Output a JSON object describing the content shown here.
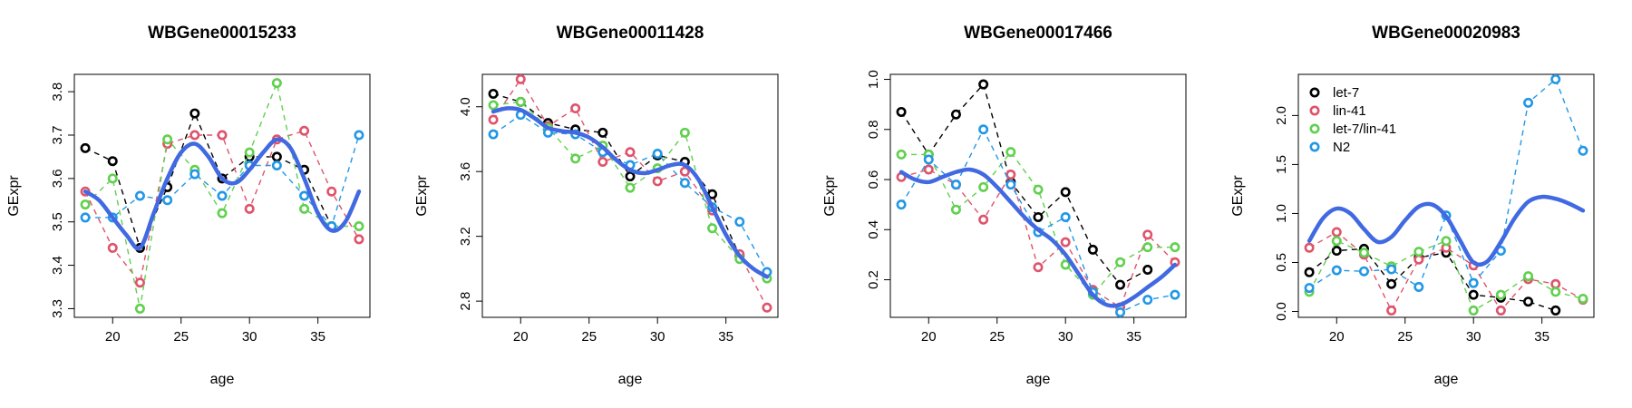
{
  "colors": {
    "let-7": "#000000",
    "lin-41": "#DF536B",
    "let-7/lin-41": "#61D04F",
    "N2": "#2297E6",
    "smooth": "#4169E1"
  },
  "chart_data": [
    {
      "type": "line",
      "title": "WBGene00015233",
      "xlabel": "age",
      "ylabel": "GExpr",
      "xlim": [
        17.2,
        38.8
      ],
      "ylim": [
        3.28,
        3.84
      ],
      "xticks": [
        20,
        25,
        30,
        35
      ],
      "yticks": [
        3.3,
        3.4,
        3.5,
        3.6,
        3.7,
        3.8
      ],
      "ytick_labels": [
        "3.3",
        "3.4",
        "3.5",
        "3.6",
        "3.7",
        "3.8"
      ],
      "grid": false,
      "legend": null,
      "series": [
        {
          "name": "let-7",
          "x": [
            18,
            20,
            22,
            24,
            26,
            28,
            30,
            32,
            34,
            36
          ],
          "values": [
            3.67,
            3.64,
            3.44,
            3.58,
            3.75,
            3.6,
            3.65,
            3.65,
            3.62,
            3.49
          ]
        },
        {
          "name": "lin-41",
          "x": [
            18,
            20,
            22,
            24,
            26,
            28,
            30,
            32,
            34,
            36,
            38
          ],
          "values": [
            3.57,
            3.44,
            3.36,
            3.68,
            3.7,
            3.7,
            3.53,
            3.69,
            3.71,
            3.57,
            3.46
          ]
        },
        {
          "name": "let-7/lin-41",
          "x": [
            18,
            20,
            22,
            24,
            26,
            28,
            30,
            32,
            34,
            36,
            38
          ],
          "values": [
            3.54,
            3.6,
            3.3,
            3.69,
            3.62,
            3.52,
            3.66,
            3.82,
            3.53,
            3.49,
            3.49
          ]
        },
        {
          "name": "N2",
          "x": [
            18,
            20,
            22,
            24,
            26,
            28,
            30,
            32,
            34,
            36,
            38
          ],
          "values": [
            3.51,
            3.51,
            3.56,
            3.55,
            3.61,
            3.56,
            3.63,
            3.63,
            3.56,
            3.49,
            3.7
          ]
        }
      ],
      "smooth": {
        "x": [
          18,
          19,
          20,
          21,
          22,
          23,
          24,
          25,
          26,
          27,
          28,
          29,
          30,
          31,
          32,
          33,
          34,
          35,
          36,
          37,
          38
        ],
        "values": [
          3.57,
          3.55,
          3.51,
          3.47,
          3.44,
          3.52,
          3.6,
          3.66,
          3.68,
          3.65,
          3.6,
          3.59,
          3.62,
          3.66,
          3.69,
          3.67,
          3.6,
          3.52,
          3.48,
          3.5,
          3.57
        ]
      }
    },
    {
      "type": "line",
      "title": "WBGene00011428",
      "xlabel": "age",
      "ylabel": "GExpr",
      "xlim": [
        17.2,
        38.8
      ],
      "ylim": [
        2.7,
        4.2
      ],
      "xticks": [
        20,
        25,
        30,
        35
      ],
      "yticks": [
        2.8,
        3.2,
        3.6,
        4.0
      ],
      "ytick_labels": [
        "2.8",
        "3.2",
        "3.6",
        "4.0"
      ],
      "grid": false,
      "legend": null,
      "series": [
        {
          "name": "let-7",
          "x": [
            18,
            20,
            22,
            24,
            26,
            28,
            30,
            32,
            34,
            36
          ],
          "values": [
            4.08,
            4.03,
            3.9,
            3.86,
            3.84,
            3.57,
            3.7,
            3.66,
            3.46,
            3.08
          ]
        },
        {
          "name": "lin-41",
          "x": [
            18,
            20,
            22,
            24,
            26,
            28,
            30,
            32,
            34,
            36,
            38
          ],
          "values": [
            3.92,
            4.17,
            3.88,
            3.99,
            3.66,
            3.72,
            3.54,
            3.6,
            3.36,
            3.09,
            2.76
          ]
        },
        {
          "name": "let-7/lin-41",
          "x": [
            18,
            20,
            22,
            24,
            26,
            28,
            30,
            32,
            34,
            36,
            38
          ],
          "values": [
            4.01,
            4.03,
            3.87,
            3.68,
            3.76,
            3.5,
            3.62,
            3.84,
            3.25,
            3.06,
            2.94
          ]
        },
        {
          "name": "N2",
          "x": [
            18,
            20,
            22,
            24,
            26,
            28,
            30,
            32,
            34,
            36,
            38
          ],
          "values": [
            3.83,
            3.95,
            3.84,
            3.83,
            3.72,
            3.64,
            3.71,
            3.53,
            3.38,
            3.29,
            2.98
          ]
        }
      ],
      "smooth": {
        "x": [
          18,
          19,
          20,
          21,
          22,
          23,
          24,
          25,
          26,
          27,
          28,
          29,
          30,
          31,
          32,
          33,
          34,
          35,
          36,
          37,
          38
        ],
        "values": [
          3.97,
          3.99,
          3.98,
          3.93,
          3.87,
          3.85,
          3.84,
          3.81,
          3.75,
          3.67,
          3.61,
          3.59,
          3.61,
          3.64,
          3.64,
          3.55,
          3.38,
          3.21,
          3.08,
          3.0,
          2.95
        ]
      }
    },
    {
      "type": "line",
      "title": "WBGene00017466",
      "xlabel": "age",
      "ylabel": "GExpr",
      "xlim": [
        17.2,
        38.8
      ],
      "ylim": [
        0.05,
        1.02
      ],
      "xticks": [
        20,
        25,
        30,
        35
      ],
      "yticks": [
        0.2,
        0.4,
        0.6,
        0.8,
        1.0
      ],
      "ytick_labels": [
        "0.2",
        "0.4",
        "0.6",
        "0.8",
        "1.0"
      ],
      "grid": false,
      "legend": null,
      "series": [
        {
          "name": "let-7",
          "x": [
            18,
            20,
            22,
            24,
            26,
            28,
            30,
            32,
            34,
            36
          ],
          "values": [
            0.87,
            0.7,
            0.86,
            0.98,
            0.59,
            0.45,
            0.55,
            0.32,
            0.18,
            0.24
          ]
        },
        {
          "name": "lin-41",
          "x": [
            18,
            20,
            22,
            24,
            26,
            28,
            30,
            32,
            34,
            36,
            38
          ],
          "values": [
            0.61,
            0.64,
            0.58,
            0.44,
            0.62,
            0.25,
            0.35,
            0.16,
            0.09,
            0.38,
            0.27
          ]
        },
        {
          "name": "let-7/lin-41",
          "x": [
            18,
            20,
            22,
            24,
            26,
            28,
            30,
            32,
            34,
            36,
            38
          ],
          "values": [
            0.7,
            0.7,
            0.48,
            0.57,
            0.71,
            0.56,
            0.26,
            0.14,
            0.27,
            0.33,
            0.33
          ]
        },
        {
          "name": "N2",
          "x": [
            18,
            20,
            22,
            24,
            26,
            28,
            30,
            32,
            34,
            36,
            38
          ],
          "values": [
            0.5,
            0.68,
            0.58,
            0.8,
            0.58,
            0.39,
            0.45,
            0.15,
            0.07,
            0.12,
            0.14
          ]
        }
      ],
      "smooth": {
        "x": [
          18,
          19,
          20,
          21,
          22,
          23,
          24,
          25,
          26,
          27,
          28,
          29,
          30,
          31,
          32,
          33,
          34,
          35,
          36,
          37,
          38
        ],
        "values": [
          0.63,
          0.6,
          0.59,
          0.61,
          0.63,
          0.64,
          0.62,
          0.57,
          0.51,
          0.45,
          0.4,
          0.36,
          0.3,
          0.22,
          0.14,
          0.1,
          0.1,
          0.13,
          0.17,
          0.21,
          0.26
        ]
      }
    },
    {
      "type": "line",
      "title": "WBGene00020983",
      "xlabel": "age",
      "ylabel": "GExpr",
      "xlim": [
        17.2,
        38.8
      ],
      "ylim": [
        -0.06,
        2.42
      ],
      "xticks": [
        20,
        25,
        30,
        35
      ],
      "yticks": [
        0.0,
        0.5,
        1.0,
        1.5,
        2.0
      ],
      "ytick_labels": [
        "0.0",
        "0.5",
        "1.0",
        "1.5",
        "2.0"
      ],
      "grid": false,
      "legend": {
        "position": "top-left",
        "entries": [
          "let-7",
          "lin-41",
          "let-7/lin-41",
          "N2"
        ]
      },
      "series": [
        {
          "name": "let-7",
          "x": [
            18,
            20,
            22,
            24,
            26,
            28,
            30,
            32,
            34,
            36
          ],
          "values": [
            0.4,
            0.62,
            0.64,
            0.28,
            0.55,
            0.6,
            0.17,
            0.14,
            0.1,
            0.01
          ]
        },
        {
          "name": "lin-41",
          "x": [
            18,
            20,
            22,
            24,
            26,
            28,
            30,
            32,
            34,
            36,
            38
          ],
          "values": [
            0.65,
            0.81,
            0.58,
            0.01,
            0.53,
            0.65,
            0.47,
            0.01,
            0.33,
            0.28,
            0.12
          ]
        },
        {
          "name": "let-7/lin-41",
          "x": [
            18,
            20,
            22,
            24,
            26,
            28,
            30,
            32,
            34,
            36,
            38
          ],
          "values": [
            0.2,
            0.72,
            0.6,
            0.46,
            0.61,
            0.72,
            0.01,
            0.17,
            0.36,
            0.2,
            0.13
          ]
        },
        {
          "name": "N2",
          "x": [
            18,
            20,
            22,
            24,
            26,
            28,
            30,
            32,
            34,
            36,
            38
          ],
          "values": [
            0.24,
            0.42,
            0.41,
            0.43,
            0.25,
            0.98,
            0.29,
            0.62,
            2.13,
            2.37,
            1.64
          ]
        }
      ],
      "smooth": {
        "x": [
          18,
          19,
          20,
          21,
          22,
          23,
          24,
          25,
          26,
          27,
          28,
          29,
          30,
          31,
          32,
          33,
          34,
          35,
          36,
          37,
          38
        ],
        "values": [
          0.72,
          0.95,
          1.05,
          1.0,
          0.84,
          0.71,
          0.76,
          0.93,
          1.07,
          1.09,
          0.97,
          0.73,
          0.5,
          0.51,
          0.71,
          0.95,
          1.12,
          1.17,
          1.15,
          1.1,
          1.03
        ]
      }
    }
  ]
}
